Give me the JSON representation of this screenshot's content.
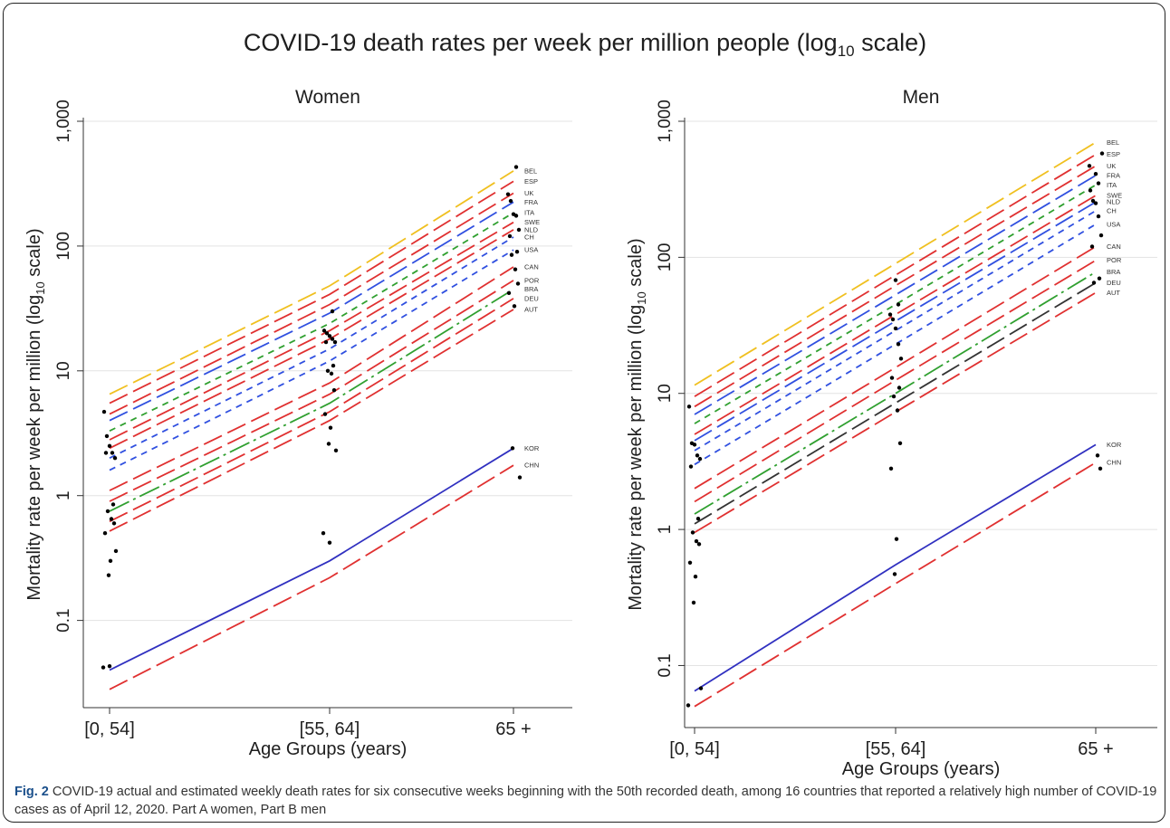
{
  "figure": {
    "title_prefix": "COVID-19 death rates per week per million people (log",
    "title_sub": "10",
    "title_suffix": " scale)",
    "caption_label": "Fig. 2",
    "caption_text": " COVID-19 actual and estimated weekly death rates for six consecutive weeks beginning with the 50th recorded death, among 16 countries that reported a relatively high number of COVID-19 cases as of April 12, 2020. Part A women, Part B men"
  },
  "chart_data": [
    {
      "type": "line",
      "title": "Women",
      "xlabel": "Age Groups (years)",
      "ylabel_prefix": "Mortality rate per week per million (log",
      "ylabel_sub": "10",
      "ylabel_suffix": " scale)",
      "y_scale": "log10",
      "ylim": [
        0.02,
        1000
      ],
      "yticks": [
        0.1,
        1,
        10,
        100,
        1000
      ],
      "ytick_labels": [
        "0.1",
        "1",
        "10",
        "100",
        "1,000"
      ],
      "categories": [
        "[0, 54]",
        "[55, 64]",
        "65 +"
      ],
      "grid": true,
      "series": [
        {
          "name": "BEL",
          "color": "#f0c020",
          "dash": "dashed",
          "values": [
            6.5,
            48,
            400
          ]
        },
        {
          "name": "ESP",
          "color": "#e03030",
          "dash": "dashed",
          "values": [
            5.5,
            41,
            330
          ]
        },
        {
          "name": "UK",
          "color": "#e03030",
          "dash": "dashed",
          "values": [
            4.5,
            34,
            265
          ]
        },
        {
          "name": "FRA",
          "color": "#3050e0",
          "dash": "dashed",
          "values": [
            4.0,
            29,
            225
          ]
        },
        {
          "name": "ITA",
          "color": "#30a030",
          "dash": "dotted",
          "values": [
            3.3,
            24,
            185
          ]
        },
        {
          "name": "SWE",
          "color": "#e03030",
          "dash": "dashed",
          "values": [
            2.8,
            21,
            155
          ]
        },
        {
          "name": "NLD",
          "color": "#e03030",
          "dash": "dashed",
          "values": [
            2.4,
            18,
            135
          ]
        },
        {
          "name": "CH",
          "color": "#3050e0",
          "dash": "dotted",
          "values": [
            2.0,
            15,
            118
          ]
        },
        {
          "name": "USA",
          "color": "#3050e0",
          "dash": "dotted",
          "values": [
            1.6,
            12,
            93
          ]
        },
        {
          "name": "CAN",
          "color": "#e03030",
          "dash": "dashed",
          "values": [
            1.1,
            8,
            68
          ]
        },
        {
          "name": "POR",
          "color": "#e03030",
          "dash": "dashed",
          "values": [
            0.9,
            6.5,
            53
          ]
        },
        {
          "name": "BRA",
          "color": "#30a030",
          "dash": "dashdot",
          "values": [
            0.75,
            5.5,
            45
          ]
        },
        {
          "name": "DEU",
          "color": "#e03030",
          "dash": "dashed",
          "values": [
            0.62,
            4.7,
            38
          ]
        },
        {
          "name": "AUT",
          "color": "#e03030",
          "dash": "dashed",
          "values": [
            0.52,
            4.0,
            31
          ]
        },
        {
          "name": "KOR",
          "color": "#3030c0",
          "dash": "solid",
          "values": [
            0.04,
            0.3,
            2.4
          ]
        },
        {
          "name": "CHN",
          "color": "#e03030",
          "dash": "dashed",
          "values": [
            0.028,
            0.22,
            1.75
          ]
        }
      ],
      "observed_points": [
        [
          0,
          4.7
        ],
        [
          0,
          3.0
        ],
        [
          0,
          2.5
        ],
        [
          0,
          2.2
        ],
        [
          0,
          2.0
        ],
        [
          0,
          2.2
        ],
        [
          0,
          0.85
        ],
        [
          0,
          0.75
        ],
        [
          0,
          0.65
        ],
        [
          0,
          0.6
        ],
        [
          0,
          0.5
        ],
        [
          0,
          0.3
        ],
        [
          0,
          0.23
        ],
        [
          0,
          0.36
        ],
        [
          0,
          0.042
        ],
        [
          0,
          0.043
        ],
        [
          1,
          30
        ],
        [
          1,
          21
        ],
        [
          1,
          20
        ],
        [
          1,
          19
        ],
        [
          1,
          18
        ],
        [
          1,
          17
        ],
        [
          1,
          17
        ],
        [
          1,
          11
        ],
        [
          1,
          10
        ],
        [
          1,
          9.5
        ],
        [
          1,
          7
        ],
        [
          1,
          4.5
        ],
        [
          1,
          3.5
        ],
        [
          1,
          2.6
        ],
        [
          1,
          2.3
        ],
        [
          1,
          0.5
        ],
        [
          1,
          0.42
        ],
        [
          2,
          430
        ],
        [
          2,
          260
        ],
        [
          2,
          230
        ],
        [
          2,
          180
        ],
        [
          2,
          175
        ],
        [
          2,
          135
        ],
        [
          2,
          120
        ],
        [
          2,
          90
        ],
        [
          2,
          85
        ],
        [
          2,
          65
        ],
        [
          2,
          50
        ],
        [
          2,
          42
        ],
        [
          2,
          33
        ],
        [
          2,
          2.4
        ],
        [
          2,
          1.4
        ]
      ]
    },
    {
      "type": "line",
      "title": "Men",
      "xlabel": "Age Groups (years)",
      "ylabel_prefix": "Mortality rate per week per million (log",
      "ylabel_sub": "10",
      "ylabel_suffix": " scale)",
      "y_scale": "log10",
      "ylim": [
        0.035,
        1000
      ],
      "yticks": [
        0.1,
        1,
        10,
        100,
        1000
      ],
      "ytick_labels": [
        "0.1",
        "1",
        "10",
        "100",
        "1,000"
      ],
      "categories": [
        "[0, 54]",
        "[55, 64]",
        "65 +"
      ],
      "grid": true,
      "series": [
        {
          "name": "BEL",
          "color": "#f0c020",
          "dash": "dashed",
          "values": [
            11.5,
            90,
            700
          ]
        },
        {
          "name": "ESP",
          "color": "#e03030",
          "dash": "dashed",
          "values": [
            9.5,
            74,
            570
          ]
        },
        {
          "name": "UK",
          "color": "#e03030",
          "dash": "dashed",
          "values": [
            8.0,
            62,
            470
          ]
        },
        {
          "name": "FRA",
          "color": "#3050e0",
          "dash": "dashed",
          "values": [
            7.0,
            53,
            400
          ]
        },
        {
          "name": "ITA",
          "color": "#30a030",
          "dash": "dotted",
          "values": [
            6.0,
            45,
            340
          ]
        },
        {
          "name": "SWE",
          "color": "#e03030",
          "dash": "dashed",
          "values": [
            5.0,
            38,
            285
          ]
        },
        {
          "name": "NLD",
          "color": "#3050e0",
          "dash": "dashed",
          "values": [
            4.5,
            34,
            255
          ]
        },
        {
          "name": "CH",
          "color": "#3050e0",
          "dash": "dotted",
          "values": [
            3.8,
            29,
            220
          ]
        },
        {
          "name": "USA",
          "color": "#3050e0",
          "dash": "dotted",
          "values": [
            3.0,
            23,
            175
          ]
        },
        {
          "name": "CAN",
          "color": "#e03030",
          "dash": "dashed",
          "values": [
            2.0,
            15.5,
            120
          ]
        },
        {
          "name": "POR",
          "color": "#e03030",
          "dash": "dashed",
          "values": [
            1.6,
            12.5,
            95
          ]
        },
        {
          "name": "BRA",
          "color": "#30a030",
          "dash": "dashdot",
          "values": [
            1.3,
            10,
            78
          ]
        },
        {
          "name": "DEU",
          "color": "#333333",
          "dash": "dashed",
          "values": [
            1.1,
            8.5,
            65
          ]
        },
        {
          "name": "AUT",
          "color": "#e03030",
          "dash": "dashed",
          "values": [
            0.95,
            7.3,
            55
          ]
        },
        {
          "name": "KOR",
          "color": "#3030c0",
          "dash": "solid",
          "values": [
            0.065,
            0.55,
            4.2
          ]
        },
        {
          "name": "CHN",
          "color": "#e03030",
          "dash": "dashed",
          "values": [
            0.05,
            0.4,
            3.1
          ]
        }
      ],
      "observed_points": [
        [
          0,
          8.0
        ],
        [
          0,
          4.3
        ],
        [
          0,
          4.2
        ],
        [
          0,
          3.5
        ],
        [
          0,
          3.3
        ],
        [
          0,
          2.9
        ],
        [
          0,
          1.2
        ],
        [
          0,
          0.95
        ],
        [
          0,
          0.82
        ],
        [
          0,
          0.78
        ],
        [
          0,
          0.57
        ],
        [
          0,
          0.45
        ],
        [
          0,
          0.29
        ],
        [
          0,
          0.068
        ],
        [
          0,
          0.051
        ],
        [
          1,
          68
        ],
        [
          1,
          45
        ],
        [
          1,
          38
        ],
        [
          1,
          35
        ],
        [
          1,
          30
        ],
        [
          1,
          23
        ],
        [
          1,
          18
        ],
        [
          1,
          13
        ],
        [
          1,
          11
        ],
        [
          1,
          9.5
        ],
        [
          1,
          7.5
        ],
        [
          1,
          4.3
        ],
        [
          1,
          2.8
        ],
        [
          1,
          0.85
        ],
        [
          1,
          0.47
        ],
        [
          2,
          580
        ],
        [
          2,
          470
        ],
        [
          2,
          410
        ],
        [
          2,
          350
        ],
        [
          2,
          310
        ],
        [
          2,
          260
        ],
        [
          2,
          250
        ],
        [
          2,
          200
        ],
        [
          2,
          145
        ],
        [
          2,
          120
        ],
        [
          2,
          70
        ],
        [
          2,
          65
        ],
        [
          2,
          3.5
        ],
        [
          2,
          2.8
        ]
      ]
    }
  ]
}
